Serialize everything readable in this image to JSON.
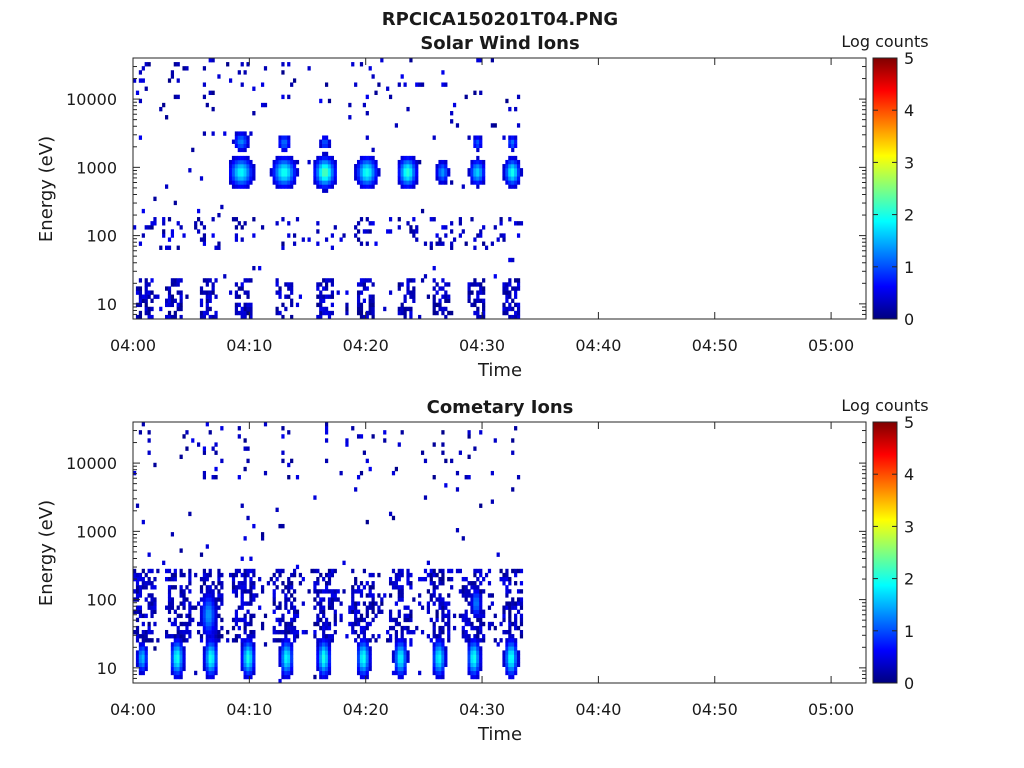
{
  "figure_title": "RPCICA150201T04.PNG",
  "chart_data": [
    {
      "type": "heatmap",
      "title": "Solar Wind Ions",
      "xlabel": "Time",
      "ylabel": "Energy (eV)",
      "x_tick_labels": [
        "04:00",
        "04:10",
        "04:20",
        "04:30",
        "04:40",
        "04:50",
        "05:00"
      ],
      "x_ticks_min": [
        0,
        10,
        20,
        30,
        40,
        50,
        60
      ],
      "xlim_min": [
        0,
        63
      ],
      "y_scale": "log",
      "y_tick_labels": [
        "10",
        "100",
        "1000",
        "10000"
      ],
      "y_ticks": [
        10,
        100,
        1000,
        10000
      ],
      "ylim": [
        6,
        40000
      ],
      "colorbar_label": "Log counts",
      "colorbar_ticks": [
        "0",
        "1",
        "2",
        "3",
        "4",
        "5"
      ],
      "clim": [
        0,
        5
      ],
      "colormap": "jet",
      "data_coverage_min": [
        0,
        33.5
      ],
      "sweep_times_min": [
        1,
        3.5,
        6.5,
        9.5,
        13,
        16.5,
        20,
        23.5,
        26.5,
        29.5,
        32.5
      ],
      "blobs": [
        {
          "t": 9.3,
          "e": 2400,
          "w": 0.6,
          "h": 0.13,
          "v": 1.3
        },
        {
          "t": 9.3,
          "e": 850,
          "w": 0.9,
          "h": 0.2,
          "v": 1.9
        },
        {
          "t": 13.0,
          "e": 2300,
          "w": 0.5,
          "h": 0.12,
          "v": 1.2
        },
        {
          "t": 13.0,
          "e": 850,
          "w": 0.9,
          "h": 0.2,
          "v": 2.0
        },
        {
          "t": 16.5,
          "e": 2300,
          "w": 0.4,
          "h": 0.1,
          "v": 1.1
        },
        {
          "t": 16.5,
          "e": 850,
          "w": 0.8,
          "h": 0.2,
          "v": 2.3
        },
        {
          "t": 20.1,
          "e": 850,
          "w": 0.8,
          "h": 0.2,
          "v": 2.0
        },
        {
          "t": 23.6,
          "e": 850,
          "w": 0.7,
          "h": 0.2,
          "v": 2.1
        },
        {
          "t": 26.6,
          "e": 850,
          "w": 0.5,
          "h": 0.15,
          "v": 1.4
        },
        {
          "t": 29.6,
          "e": 2300,
          "w": 0.4,
          "h": 0.1,
          "v": 1.1
        },
        {
          "t": 29.6,
          "e": 850,
          "w": 0.6,
          "h": 0.17,
          "v": 1.7
        },
        {
          "t": 32.6,
          "e": 2300,
          "w": 0.4,
          "h": 0.1,
          "v": 1.2
        },
        {
          "t": 32.6,
          "e": 850,
          "w": 0.6,
          "h": 0.18,
          "v": 2.0
        }
      ],
      "low_energy_band": {
        "e_min": 6,
        "e_max": 25,
        "level": 0.3
      },
      "scatter_seed": 7
    },
    {
      "type": "heatmap",
      "title": "Cometary Ions",
      "xlabel": "Time",
      "ylabel": "Energy (eV)",
      "x_tick_labels": [
        "04:00",
        "04:10",
        "04:20",
        "04:30",
        "04:40",
        "04:50",
        "05:00"
      ],
      "x_ticks_min": [
        0,
        10,
        20,
        30,
        40,
        50,
        60
      ],
      "xlim_min": [
        0,
        63
      ],
      "y_scale": "log",
      "y_tick_labels": [
        "10",
        "100",
        "1000",
        "10000"
      ],
      "y_ticks": [
        10,
        100,
        1000,
        10000
      ],
      "ylim": [
        6,
        40000
      ],
      "colorbar_label": "Log counts",
      "colorbar_ticks": [
        "0",
        "1",
        "2",
        "3",
        "4",
        "5"
      ],
      "clim": [
        0,
        5
      ],
      "colormap": "jet",
      "data_coverage_min": [
        0,
        33.5
      ],
      "sweep_times_min": [
        1,
        4,
        6.7,
        9.5,
        13,
        16.5,
        19.8,
        23,
        26.2,
        29.2,
        32.5
      ],
      "blobs": [
        {
          "t": 0.8,
          "e": 14,
          "w": 0.4,
          "h": 0.2,
          "v": 1.6
        },
        {
          "t": 3.8,
          "e": 14,
          "w": 0.5,
          "h": 0.25,
          "v": 2.0
        },
        {
          "t": 6.7,
          "e": 14,
          "w": 0.5,
          "h": 0.25,
          "v": 2.0
        },
        {
          "t": 9.9,
          "e": 14,
          "w": 0.5,
          "h": 0.25,
          "v": 2.0
        },
        {
          "t": 13.2,
          "e": 14,
          "w": 0.5,
          "h": 0.25,
          "v": 1.9
        },
        {
          "t": 16.4,
          "e": 14,
          "w": 0.5,
          "h": 0.25,
          "v": 2.0
        },
        {
          "t": 19.8,
          "e": 14,
          "w": 0.5,
          "h": 0.25,
          "v": 2.0
        },
        {
          "t": 23.0,
          "e": 14,
          "w": 0.5,
          "h": 0.25,
          "v": 1.9
        },
        {
          "t": 26.3,
          "e": 14,
          "w": 0.5,
          "h": 0.25,
          "v": 1.9
        },
        {
          "t": 29.3,
          "e": 14,
          "w": 0.5,
          "h": 0.25,
          "v": 2.0
        },
        {
          "t": 32.5,
          "e": 14,
          "w": 0.5,
          "h": 0.25,
          "v": 2.0
        },
        {
          "t": 6.5,
          "e": 60,
          "w": 0.6,
          "h": 0.3,
          "v": 1.4
        },
        {
          "t": 29.5,
          "e": 90,
          "w": 0.4,
          "h": 0.2,
          "v": 1.3
        }
      ],
      "mid_energy_band": {
        "e_min": 25,
        "e_max": 300,
        "level": 0.4
      },
      "scatter_seed": 13
    }
  ]
}
